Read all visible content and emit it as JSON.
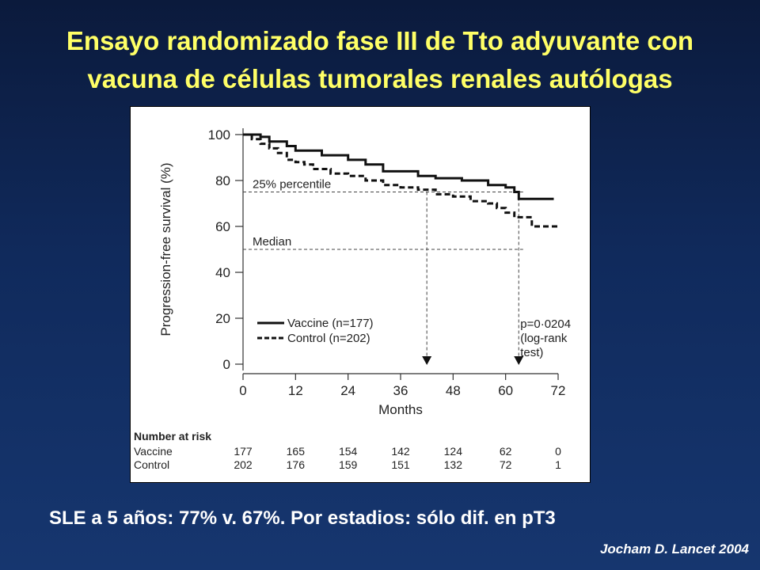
{
  "slide": {
    "title_line1": "Ensayo randomizado fase III de Tto adyuvante con",
    "title_line2": "vacuna de células tumorales renales autólogas",
    "summary": "SLE a 5 años: 77% v. 67%. Por estadios: sólo dif. en pT3",
    "citation": "Jocham D. Lancet 2004"
  },
  "colors": {
    "title": "#ffff66",
    "text": "#ffffff",
    "background_top": "#0b1a3c",
    "background_bottom": "#16366f",
    "panel": "#ffffff"
  },
  "chart_data": {
    "type": "line",
    "xlabel": "Months",
    "ylabel": "Progression-free survival (%)",
    "xlim": [
      0,
      72
    ],
    "ylim": [
      0,
      100
    ],
    "xticks": [
      0,
      12,
      24,
      36,
      48,
      60,
      72
    ],
    "yticks": [
      0,
      20,
      40,
      60,
      80,
      100
    ],
    "grid": false,
    "legend_position": "lower-left",
    "series": [
      {
        "name": "Vaccine (n=177)",
        "style": "solid",
        "step_points": [
          [
            0,
            100
          ],
          [
            4,
            100
          ],
          [
            4,
            99
          ],
          [
            6,
            99
          ],
          [
            6,
            97
          ],
          [
            10,
            97
          ],
          [
            10,
            95
          ],
          [
            12,
            95
          ],
          [
            12,
            93
          ],
          [
            18,
            93
          ],
          [
            18,
            91
          ],
          [
            24,
            91
          ],
          [
            24,
            89
          ],
          [
            28,
            89
          ],
          [
            28,
            87
          ],
          [
            32,
            87
          ],
          [
            32,
            84
          ],
          [
            40,
            84
          ],
          [
            40,
            82
          ],
          [
            44,
            82
          ],
          [
            44,
            81
          ],
          [
            50,
            81
          ],
          [
            50,
            80
          ],
          [
            56,
            80
          ],
          [
            56,
            78
          ],
          [
            60,
            78
          ],
          [
            60,
            77
          ],
          [
            62,
            77
          ],
          [
            62,
            75
          ],
          [
            63,
            75
          ],
          [
            63,
            72
          ],
          [
            71,
            72
          ]
        ]
      },
      {
        "name": "Control (n=202)",
        "style": "dashed",
        "step_points": [
          [
            0,
            100
          ],
          [
            2,
            100
          ],
          [
            2,
            98
          ],
          [
            4,
            98
          ],
          [
            4,
            96
          ],
          [
            6,
            96
          ],
          [
            6,
            94
          ],
          [
            8,
            94
          ],
          [
            8,
            92
          ],
          [
            10,
            92
          ],
          [
            10,
            89
          ],
          [
            12,
            89
          ],
          [
            12,
            88
          ],
          [
            14,
            88
          ],
          [
            14,
            87
          ],
          [
            16,
            87
          ],
          [
            16,
            85
          ],
          [
            20,
            85
          ],
          [
            20,
            83
          ],
          [
            24,
            83
          ],
          [
            24,
            82
          ],
          [
            28,
            82
          ],
          [
            28,
            80
          ],
          [
            32,
            80
          ],
          [
            32,
            78
          ],
          [
            36,
            78
          ],
          [
            36,
            77
          ],
          [
            40,
            77
          ],
          [
            40,
            76
          ],
          [
            44,
            76
          ],
          [
            44,
            74
          ],
          [
            48,
            74
          ],
          [
            48,
            73
          ],
          [
            52,
            73
          ],
          [
            52,
            71
          ],
          [
            56,
            71
          ],
          [
            56,
            70
          ],
          [
            58,
            70
          ],
          [
            58,
            68
          ],
          [
            60,
            68
          ],
          [
            60,
            66
          ],
          [
            62,
            66
          ],
          [
            62,
            64
          ],
          [
            66,
            64
          ],
          [
            66,
            60
          ],
          [
            72,
            60
          ]
        ]
      }
    ],
    "reference_lines": [
      {
        "label": "25% percentile",
        "y": 75
      },
      {
        "label": "Median",
        "y": 50
      }
    ],
    "percentile_drops": [
      {
        "series": "Control (n=202)",
        "x": 42,
        "from_y": 75
      },
      {
        "series": "Vaccine (n=177)",
        "x": 63,
        "from_y": 75
      }
    ],
    "annotation": [
      "p=0·0204",
      "(log-rank",
      "test)"
    ],
    "risk_table": {
      "title": "Number at risk",
      "times": [
        0,
        12,
        24,
        36,
        48,
        60,
        72
      ],
      "rows": [
        {
          "label": "Vaccine",
          "values": [
            "177",
            "165",
            "154",
            "142",
            "124",
            "62",
            "0"
          ]
        },
        {
          "label": "Control",
          "values": [
            "202",
            "176",
            "159",
            "151",
            "132",
            "72",
            "1"
          ]
        }
      ]
    }
  }
}
